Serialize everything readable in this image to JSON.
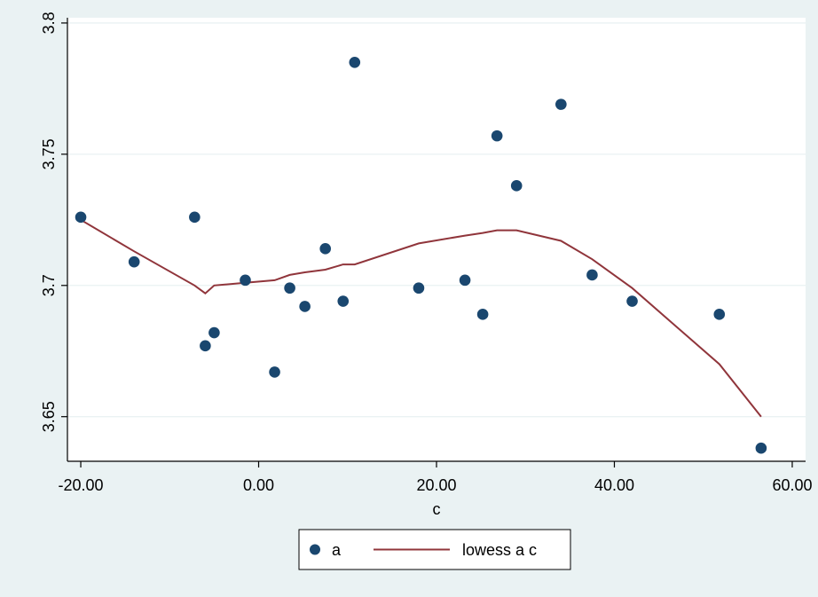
{
  "chart_data": {
    "type": "scatter",
    "xlabel": "c",
    "ylabel": "",
    "xlim": [
      -21.5,
      61.5
    ],
    "ylim": [
      3.633,
      3.802
    ],
    "grid": true,
    "x_ticks": [
      -20,
      0,
      20,
      40,
      60
    ],
    "x_tick_labels": [
      "-20.00",
      "0.00",
      "20.00",
      "40.00",
      "60.00"
    ],
    "y_ticks": [
      3.65,
      3.7,
      3.75,
      3.8
    ],
    "y_tick_labels": [
      "3.65",
      "3.7",
      "3.75",
      "3.8"
    ],
    "legend_position": "bottom-center",
    "series": [
      {
        "name": "a",
        "kind": "scatter",
        "color": "#1a476f",
        "points": [
          {
            "x": -20.0,
            "y": 3.726
          },
          {
            "x": -14.0,
            "y": 3.709
          },
          {
            "x": -7.2,
            "y": 3.726
          },
          {
            "x": -6.0,
            "y": 3.677
          },
          {
            "x": -5.0,
            "y": 3.682
          },
          {
            "x": -1.5,
            "y": 3.702
          },
          {
            "x": 1.8,
            "y": 3.667
          },
          {
            "x": 3.5,
            "y": 3.699
          },
          {
            "x": 5.2,
            "y": 3.692
          },
          {
            "x": 7.5,
            "y": 3.714
          },
          {
            "x": 9.5,
            "y": 3.694
          },
          {
            "x": 10.8,
            "y": 3.785
          },
          {
            "x": 18.0,
            "y": 3.699
          },
          {
            "x": 23.2,
            "y": 3.702
          },
          {
            "x": 25.2,
            "y": 3.689
          },
          {
            "x": 26.8,
            "y": 3.757
          },
          {
            "x": 29.0,
            "y": 3.738
          },
          {
            "x": 34.0,
            "y": 3.769
          },
          {
            "x": 37.5,
            "y": 3.704
          },
          {
            "x": 42.0,
            "y": 3.694
          },
          {
            "x": 51.8,
            "y": 3.689
          },
          {
            "x": 56.5,
            "y": 3.638
          }
        ]
      },
      {
        "name": "lowess a c",
        "kind": "line",
        "color": "#90353b",
        "points": [
          {
            "x": -20.0,
            "y": 3.725
          },
          {
            "x": -14.0,
            "y": 3.713
          },
          {
            "x": -7.2,
            "y": 3.7
          },
          {
            "x": -6.0,
            "y": 3.697
          },
          {
            "x": -5.0,
            "y": 3.7
          },
          {
            "x": -1.5,
            "y": 3.701
          },
          {
            "x": 1.8,
            "y": 3.702
          },
          {
            "x": 3.5,
            "y": 3.704
          },
          {
            "x": 5.2,
            "y": 3.705
          },
          {
            "x": 7.5,
            "y": 3.706
          },
          {
            "x": 9.5,
            "y": 3.708
          },
          {
            "x": 10.8,
            "y": 3.708
          },
          {
            "x": 18.0,
            "y": 3.716
          },
          {
            "x": 23.2,
            "y": 3.719
          },
          {
            "x": 25.2,
            "y": 3.72
          },
          {
            "x": 26.8,
            "y": 3.721
          },
          {
            "x": 29.0,
            "y": 3.721
          },
          {
            "x": 34.0,
            "y": 3.717
          },
          {
            "x": 37.5,
            "y": 3.71
          },
          {
            "x": 42.0,
            "y": 3.699
          },
          {
            "x": 51.8,
            "y": 3.67
          },
          {
            "x": 56.5,
            "y": 3.65
          }
        ]
      }
    ]
  }
}
